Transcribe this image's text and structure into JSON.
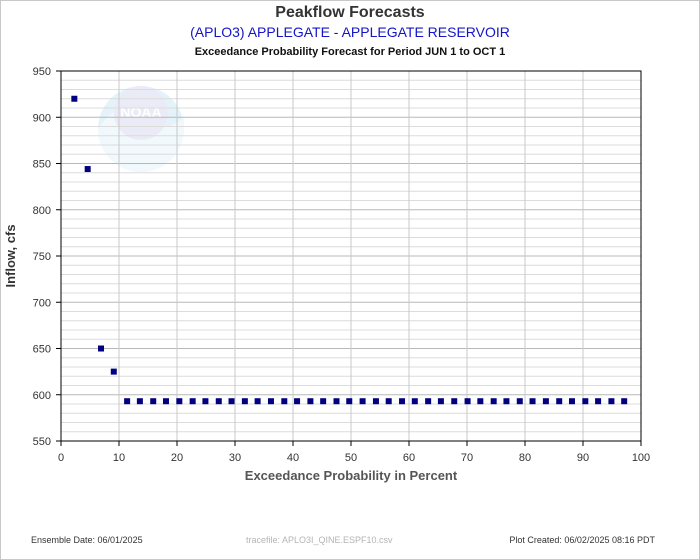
{
  "header": {
    "title": "Peakflow Forecasts",
    "subtitle": "(APLO3) APPLEGATE - APPLEGATE RESERVOIR",
    "period": "Exceedance Probability Forecast for Period JUN 1 to OCT 1"
  },
  "footer": {
    "ensemble_date": "Ensemble Date: 06/01/2025",
    "tracefile": "tracefile: APLO3I_QINE.ESPF10.csv",
    "plot_created": "Plot Created: 06/02/2025 08:16 PDT"
  },
  "watermark": {
    "text": "NOAA",
    "icon": "noaa-logo"
  },
  "colors": {
    "points": "#000080",
    "grid": "#c8c8c8",
    "accent": "#1414c8"
  },
  "chart_data": {
    "type": "scatter",
    "title": "Peakflow Forecasts",
    "subtitle": "(APLO3) APPLEGATE - APPLEGATE RESERVOIR",
    "xlabel": "Exceedance Probability in Percent",
    "ylabel": "Inflow, cfs",
    "xlim": [
      0,
      100
    ],
    "ylim": [
      550,
      950
    ],
    "xticks": [
      0,
      10,
      20,
      30,
      40,
      50,
      60,
      70,
      80,
      90,
      100
    ],
    "yticks": [
      550,
      600,
      650,
      700,
      750,
      800,
      850,
      900,
      950
    ],
    "grid": true,
    "series": [
      {
        "x": [
          2.3,
          4.6,
          6.9,
          9.1,
          11.4,
          13.6,
          15.9,
          18.1,
          20.4,
          22.7,
          24.9,
          27.2,
          29.4,
          31.7,
          33.9,
          36.2,
          38.5,
          40.7,
          43.0,
          45.2,
          47.5,
          49.7,
          52.0,
          54.3,
          56.5,
          58.8,
          61.0,
          63.3,
          65.5,
          67.8,
          70.1,
          72.3,
          74.6,
          76.8,
          79.1,
          81.3,
          83.6,
          85.9,
          88.1,
          90.4,
          92.6,
          94.9,
          97.1
        ],
        "y": [
          920,
          844,
          650,
          625,
          593,
          593,
          593,
          593,
          593,
          593,
          593,
          593,
          593,
          593,
          593,
          593,
          593,
          593,
          593,
          593,
          593,
          593,
          593,
          593,
          593,
          593,
          593,
          593,
          593,
          593,
          593,
          593,
          593,
          593,
          593,
          593,
          593,
          593,
          593,
          593,
          593,
          593,
          593
        ]
      }
    ]
  }
}
